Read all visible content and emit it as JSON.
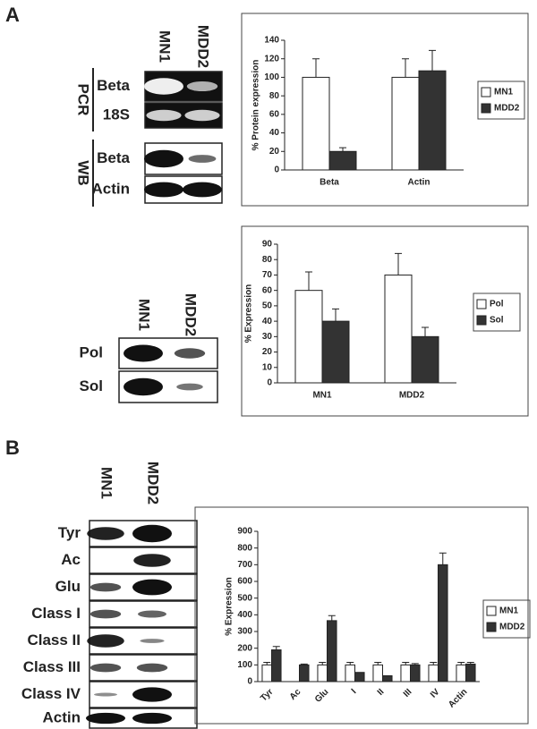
{
  "panels": {
    "a": "A",
    "b": "B"
  },
  "blots": [
    {
      "lanes": [
        "MN1",
        "MDD2"
      ],
      "groups": [
        {
          "label": "PCR",
          "rows": [
            "Beta",
            "18S"
          ]
        },
        {
          "label": "WB",
          "rows": [
            "Beta",
            "Actin"
          ]
        }
      ]
    },
    {
      "lanes": [
        "MN1",
        "MDD2"
      ],
      "groups": [
        {
          "rows": [
            "Pol",
            "Sol"
          ]
        }
      ]
    },
    {
      "lanes": [
        "MN1",
        "MDD2"
      ],
      "groups": [
        {
          "rows": [
            "Tyr",
            "Ac",
            "Glu",
            "Class I",
            "Class II",
            "Class III",
            "Class IV",
            "Actin"
          ]
        }
      ]
    }
  ],
  "chart_data": [
    {
      "type": "bar",
      "y_label": "% Protein expression",
      "categories": [
        "Beta",
        "Actin"
      ],
      "series": [
        {
          "name": "MN1",
          "color": "#ffffff",
          "values": [
            100,
            100
          ],
          "errors": [
            20,
            20
          ]
        },
        {
          "name": "MDD2",
          "color": "#333333",
          "values": [
            20,
            107
          ],
          "errors": [
            4,
            22
          ]
        }
      ],
      "ylim": [
        0,
        140
      ],
      "yticks": [
        0,
        20,
        40,
        60,
        80,
        100,
        120,
        140
      ],
      "legend": "right"
    },
    {
      "type": "bar",
      "y_label": "% Expression",
      "categories": [
        "MN1",
        "MDD2"
      ],
      "series": [
        {
          "name": "Pol",
          "color": "#ffffff",
          "values": [
            60,
            70
          ],
          "errors": [
            12,
            14
          ]
        },
        {
          "name": "Sol",
          "color": "#333333",
          "values": [
            40,
            30
          ],
          "errors": [
            8,
            6
          ]
        }
      ],
      "ylim": [
        0,
        90
      ],
      "yticks": [
        0,
        10,
        20,
        30,
        40,
        50,
        60,
        70,
        80,
        90
      ],
      "legend": "right"
    },
    {
      "type": "bar",
      "y_label": "% Expression",
      "categories": [
        "Tyr",
        "Ac",
        "Glu",
        "I",
        "II",
        "III",
        "IV",
        "Actin"
      ],
      "series": [
        {
          "name": "MN1",
          "color": "#ffffff",
          "values": [
            100,
            0,
            100,
            100,
            100,
            100,
            100,
            100
          ],
          "errors": [
            15,
            null,
            15,
            15,
            15,
            15,
            15,
            15
          ]
        },
        {
          "name": "MDD2",
          "color": "#333333",
          "values": [
            190,
            100,
            365,
            55,
            35,
            100,
            700,
            105
          ],
          "errors": [
            20,
            5,
            30,
            null,
            null,
            8,
            70,
            10
          ]
        }
      ],
      "ylim": [
        0,
        900
      ],
      "yticks": [
        0,
        100,
        200,
        300,
        400,
        500,
        600,
        700,
        800,
        900
      ],
      "legend": "right"
    }
  ]
}
